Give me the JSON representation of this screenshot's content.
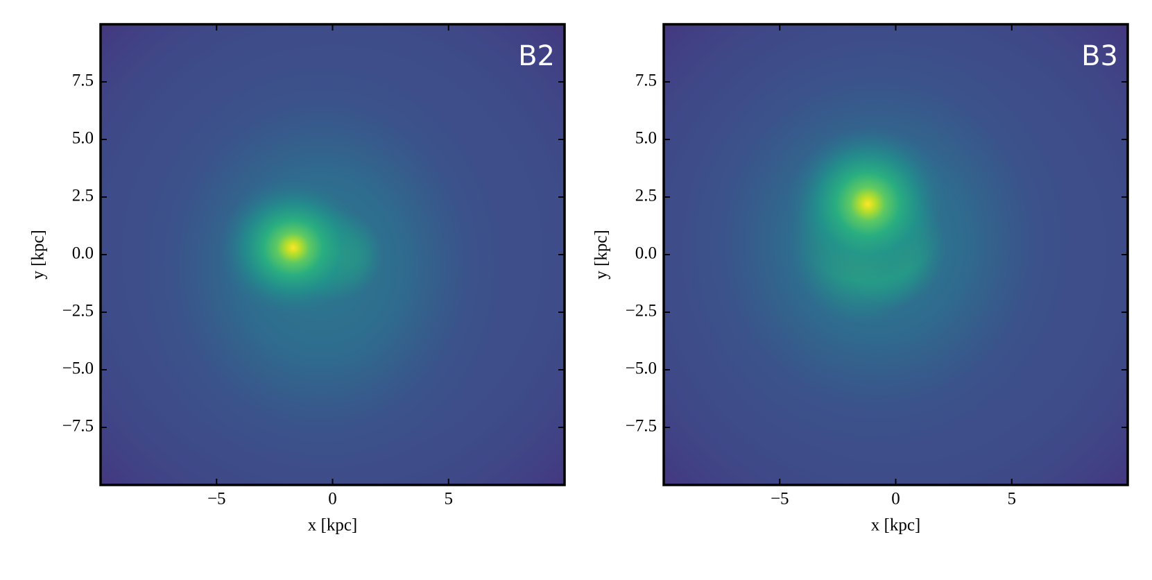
{
  "chart_data": [
    {
      "type": "contour",
      "annotation": "B2",
      "xlabel": "x [kpc]",
      "ylabel": "y [kpc]",
      "xlim": [
        -10,
        10
      ],
      "ylim": [
        -10,
        10
      ],
      "xticks": [
        {
          "value": -5,
          "label": "−5"
        },
        0,
        5
      ],
      "yticks": [
        {
          "value": -7.5,
          "label": "−7.5"
        },
        {
          "value": -5,
          "label": "−5.0"
        },
        {
          "value": -2.5,
          "label": "−2.5"
        },
        {
          "value": 0,
          "label": "0.0"
        },
        2.5,
        {
          "value": 5,
          "label": "5.0"
        },
        7.5
      ]
    },
    {
      "type": "contour",
      "annotation": "B3",
      "xlabel": "x [kpc]",
      "ylabel": "y [kpc]",
      "xlim": [
        -10,
        10
      ],
      "ylim": [
        -10,
        10
      ],
      "xticks": [
        {
          "value": -5,
          "label": "−5"
        },
        0,
        5
      ],
      "yticks": [
        {
          "value": -7.5,
          "label": "−7.5"
        },
        {
          "value": -5,
          "label": "−5.0"
        },
        {
          "value": -2.5,
          "label": "−2.5"
        },
        {
          "value": 0,
          "label": "0.0"
        },
        2.5,
        {
          "value": 5,
          "label": "5.0"
        },
        7.5
      ]
    }
  ]
}
